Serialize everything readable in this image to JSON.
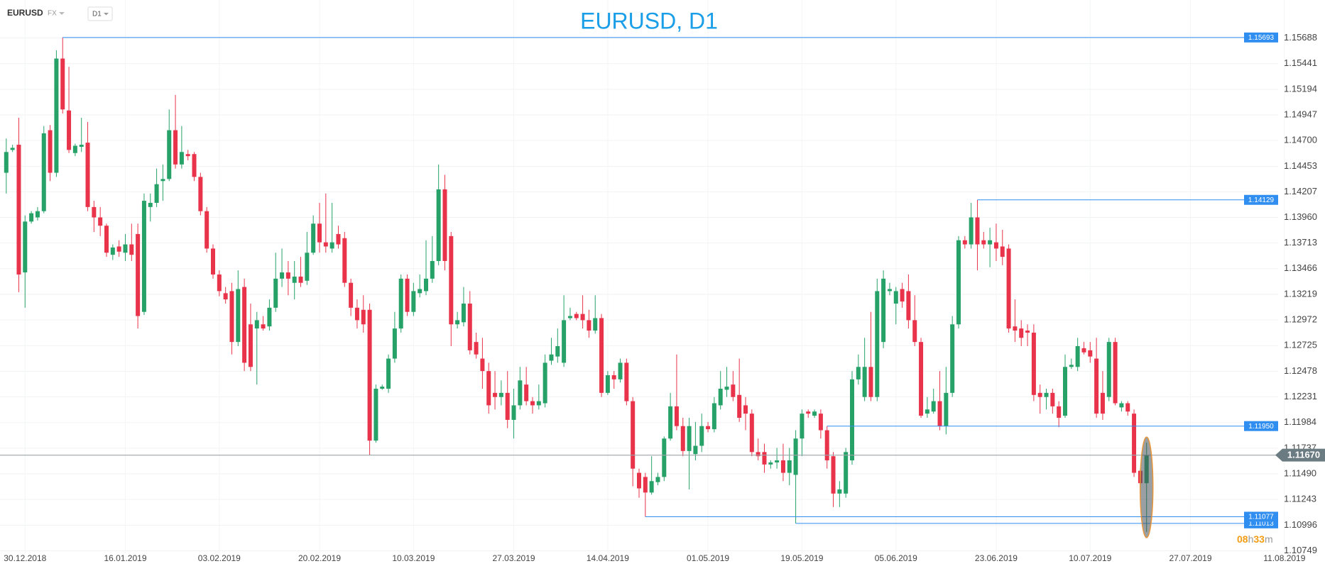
{
  "header": {
    "symbol": "EURUSD",
    "market": "FX",
    "timeframe": "D1"
  },
  "chart_data": {
    "type": "candlestick",
    "title": "EURUSD, D1",
    "up_color": "#26a269",
    "down_color": "#e8334a",
    "grid": true,
    "candles": [
      [
        1.1439,
        1.1472,
        1.1419,
        1.1459
      ],
      [
        1.1461,
        1.1466,
        1.1459,
        1.1463
      ],
      [
        1.1466,
        1.1492,
        1.1324,
        1.1341
      ],
      [
        1.1343,
        1.1398,
        1.1309,
        1.1392
      ],
      [
        1.1392,
        1.1402,
        1.139,
        1.14
      ],
      [
        1.1396,
        1.1406,
        1.1393,
        1.1402
      ],
      [
        1.1402,
        1.1484,
        1.14,
        1.1477
      ],
      [
        1.148,
        1.1485,
        1.1431,
        1.1439
      ],
      [
        1.1439,
        1.1557,
        1.1435,
        1.1549
      ],
      [
        1.1549,
        1.15693,
        1.1496,
        1.15
      ],
      [
        1.1499,
        1.1541,
        1.1458,
        1.1461
      ],
      [
        1.1458,
        1.1467,
        1.1455,
        1.1465
      ],
      [
        1.1464,
        1.1492,
        1.1459,
        1.1466
      ],
      [
        1.1468,
        1.1488,
        1.1402,
        1.1406
      ],
      [
        1.1406,
        1.1412,
        1.1382,
        1.1396
      ],
      [
        1.1396,
        1.1406,
        1.1378,
        1.1388
      ],
      [
        1.1388,
        1.139,
        1.1358,
        1.1362
      ],
      [
        1.136,
        1.137,
        1.1355,
        1.1367
      ],
      [
        1.1368,
        1.1374,
        1.1358,
        1.1363
      ],
      [
        1.1362,
        1.138,
        1.1354,
        1.137
      ],
      [
        1.137,
        1.139,
        1.1354,
        1.136
      ],
      [
        1.138,
        1.139,
        1.1289,
        1.1301
      ],
      [
        1.1305,
        1.1419,
        1.1302,
        1.1412
      ],
      [
        1.1406,
        1.1419,
        1.1392,
        1.141
      ],
      [
        1.141,
        1.1443,
        1.1406,
        1.1428
      ],
      [
        1.1431,
        1.1447,
        1.1412,
        1.1433
      ],
      [
        1.1433,
        1.15,
        1.1431,
        1.148
      ],
      [
        1.148,
        1.1514,
        1.1443,
        1.1447
      ],
      [
        1.1447,
        1.1484,
        1.1443,
        1.1459
      ],
      [
        1.1457,
        1.1461,
        1.1451,
        1.1455
      ],
      [
        1.1457,
        1.1459,
        1.1431,
        1.1435
      ],
      [
        1.1435,
        1.1439,
        1.1398,
        1.1402
      ],
      [
        1.1402,
        1.1406,
        1.1362,
        1.1366
      ],
      [
        1.1366,
        1.137,
        1.1337,
        1.1341
      ],
      [
        1.1341,
        1.1345,
        1.132,
        1.1325
      ],
      [
        1.1323,
        1.1329,
        1.1313,
        1.1317
      ],
      [
        1.1325,
        1.1333,
        1.1264,
        1.1276
      ],
      [
        1.1276,
        1.1345,
        1.1272,
        1.1327
      ],
      [
        1.1329,
        1.1337,
        1.1248,
        1.1256
      ],
      [
        1.1293,
        1.1313,
        1.1248,
        1.1252
      ],
      [
        1.1289,
        1.1305,
        1.1235,
        1.1297
      ],
      [
        1.1293,
        1.1301,
        1.1287,
        1.1289
      ],
      [
        1.1291,
        1.1317,
        1.1287,
        1.1309
      ],
      [
        1.1309,
        1.1362,
        1.1305,
        1.1337
      ],
      [
        1.1337,
        1.1366,
        1.1329,
        1.1343
      ],
      [
        1.1343,
        1.1354,
        1.1321,
        1.1337
      ],
      [
        1.1333,
        1.1354,
        1.1317,
        1.1339
      ],
      [
        1.1339,
        1.1358,
        1.1329,
        1.1333
      ],
      [
        1.1335,
        1.1382,
        1.1331,
        1.1362
      ],
      [
        1.1362,
        1.1398,
        1.136,
        1.139
      ],
      [
        1.139,
        1.141,
        1.1362,
        1.1372
      ],
      [
        1.1372,
        1.1419,
        1.1362,
        1.1368
      ],
      [
        1.1366,
        1.141,
        1.1362,
        1.1372
      ],
      [
        1.138,
        1.1388,
        1.1366,
        1.137
      ],
      [
        1.1376,
        1.1382,
        1.1329,
        1.1333
      ],
      [
        1.1333,
        1.1337,
        1.1301,
        1.1309
      ],
      [
        1.1309,
        1.1317,
        1.1289,
        1.1297
      ],
      [
        1.1307,
        1.1321,
        1.1285,
        1.1293
      ],
      [
        1.1307,
        1.1313,
        1.1167,
        1.1181
      ],
      [
        1.1181,
        1.1235,
        1.1179,
        1.1231
      ],
      [
        1.1231,
        1.1235,
        1.123,
        1.1233
      ],
      [
        1.1231,
        1.1264,
        1.1227,
        1.126
      ],
      [
        1.126,
        1.1305,
        1.1256,
        1.1289
      ],
      [
        1.1289,
        1.1341,
        1.1285,
        1.1337
      ],
      [
        1.1337,
        1.1341,
        1.1301,
        1.1305
      ],
      [
        1.1305,
        1.1333,
        1.1301,
        1.1325
      ],
      [
        1.1323,
        1.1341,
        1.1319,
        1.1327
      ],
      [
        1.1325,
        1.1374,
        1.1321,
        1.1337
      ],
      [
        1.1337,
        1.1378,
        1.1333,
        1.1354
      ],
      [
        1.1354,
        1.1447,
        1.135,
        1.1423
      ],
      [
        1.1423,
        1.1437,
        1.1345,
        1.1354
      ],
      [
        1.1378,
        1.1382,
        1.1272,
        1.1293
      ],
      [
        1.1293,
        1.1305,
        1.1289,
        1.1297
      ],
      [
        1.1295,
        1.1329,
        1.1291,
        1.1313
      ],
      [
        1.1313,
        1.1325,
        1.1264,
        1.1268
      ],
      [
        1.1276,
        1.1285,
        1.126,
        1.1264
      ],
      [
        1.126,
        1.128,
        1.1231,
        1.1248
      ],
      [
        1.1248,
        1.1256,
        1.1207,
        1.1215
      ],
      [
        1.1227,
        1.1248,
        1.1211,
        1.1223
      ],
      [
        1.1223,
        1.1239,
        1.1215,
        1.1227
      ],
      [
        1.1227,
        1.1248,
        1.1193,
        1.1201
      ],
      [
        1.1201,
        1.1231,
        1.1183,
        1.1215
      ],
      [
        1.1215,
        1.1252,
        1.1211,
        1.1239
      ],
      [
        1.1235,
        1.1252,
        1.1215,
        1.1219
      ],
      [
        1.1219,
        1.1223,
        1.1207,
        1.1215
      ],
      [
        1.1215,
        1.1235,
        1.1211,
        1.1219
      ],
      [
        1.1217,
        1.1264,
        1.1213,
        1.1256
      ],
      [
        1.1258,
        1.128,
        1.1254,
        1.1264
      ],
      [
        1.1262,
        1.1289,
        1.1256,
        1.1272
      ],
      [
        1.1256,
        1.1321,
        1.1252,
        1.1297
      ],
      [
        1.1299,
        1.1309,
        1.1297,
        1.1301
      ],
      [
        1.1303,
        1.1305,
        1.1297,
        1.1299
      ],
      [
        1.1303,
        1.1321,
        1.1289,
        1.1297
      ],
      [
        1.1297,
        1.1307,
        1.128,
        1.1287
      ],
      [
        1.1287,
        1.1321,
        1.1284,
        1.1299
      ],
      [
        1.1299,
        1.1303,
        1.1223,
        1.1227
      ],
      [
        1.1227,
        1.1248,
        1.1225,
        1.1244
      ],
      [
        1.1244,
        1.1248,
        1.1231,
        1.124
      ],
      [
        1.124,
        1.126,
        1.1237,
        1.1256
      ],
      [
        1.1256,
        1.126,
        1.1215,
        1.1219
      ],
      [
        1.1219,
        1.1223,
        1.1137,
        1.1154
      ],
      [
        1.115,
        1.1154,
        1.1126,
        1.1135
      ],
      [
        1.1146,
        1.115,
        1.11077,
        1.1131
      ],
      [
        1.1131,
        1.1166,
        1.1129,
        1.1142
      ],
      [
        1.1141,
        1.115,
        1.1138,
        1.1146
      ],
      [
        1.1146,
        1.1185,
        1.1142,
        1.1183
      ],
      [
        1.1183,
        1.1227,
        1.1181,
        1.1214
      ],
      [
        1.1214,
        1.1264,
        1.1191,
        1.1195
      ],
      [
        1.1195,
        1.1203,
        1.1166,
        1.1171
      ],
      [
        1.1171,
        1.1203,
        1.1134,
        1.1195
      ],
      [
        1.1168,
        1.1199,
        1.1162,
        1.1176
      ],
      [
        1.1176,
        1.1207,
        1.117,
        1.1195
      ],
      [
        1.1195,
        1.1199,
        1.1189,
        1.1192
      ],
      [
        1.1192,
        1.1223,
        1.1189,
        1.1217
      ],
      [
        1.1215,
        1.1248,
        1.1211,
        1.1231
      ],
      [
        1.123,
        1.1252,
        1.1223,
        1.1233
      ],
      [
        1.1235,
        1.1248,
        1.1219,
        1.1223
      ],
      [
        1.1225,
        1.126,
        1.1199,
        1.1203
      ],
      [
        1.1215,
        1.1223,
        1.1191,
        1.1207
      ],
      [
        1.1207,
        1.1211,
        1.1166,
        1.117
      ],
      [
        1.117,
        1.1183,
        1.1162,
        1.1166
      ],
      [
        1.117,
        1.1178,
        1.115,
        1.1158
      ],
      [
        1.1158,
        1.1162,
        1.1154,
        1.116
      ],
      [
        1.116,
        1.1174,
        1.1154,
        1.1162
      ],
      [
        1.1162,
        1.1178,
        1.1142,
        1.115
      ],
      [
        1.115,
        1.1174,
        1.1138,
        1.1162
      ],
      [
        1.1148,
        1.1191,
        1.11013,
        1.1183
      ],
      [
        1.1183,
        1.1211,
        1.1166,
        1.1207
      ],
      [
        1.1209,
        1.1211,
        1.1203,
        1.1207
      ],
      [
        1.1205,
        1.1211,
        1.1203,
        1.1209
      ],
      [
        1.1207,
        1.1211,
        1.1183,
        1.1191
      ],
      [
        1.1191,
        1.1195,
        1.1154,
        1.1162
      ],
      [
        1.1166,
        1.117,
        1.1117,
        1.113
      ],
      [
        1.113,
        1.1142,
        1.1117,
        1.1134
      ],
      [
        1.113,
        1.1174,
        1.1126,
        1.117
      ],
      [
        1.1162,
        1.1248,
        1.1158,
        1.124
      ],
      [
        1.124,
        1.1264,
        1.1235,
        1.1252
      ],
      [
        1.1223,
        1.128,
        1.1219,
        1.1252
      ],
      [
        1.1252,
        1.1305,
        1.1219,
        1.1223
      ],
      [
        1.1223,
        1.1337,
        1.1219,
        1.1325
      ],
      [
        1.1276,
        1.1345,
        1.127,
        1.1337
      ],
      [
        1.1325,
        1.1333,
        1.1321,
        1.1327
      ],
      [
        1.1313,
        1.1329,
        1.1293,
        1.1325
      ],
      [
        1.1327,
        1.1333,
        1.1309,
        1.1315
      ],
      [
        1.1325,
        1.1341,
        1.1289,
        1.1297
      ],
      [
        1.1297,
        1.1321,
        1.1272,
        1.1276
      ],
      [
        1.1276,
        1.128,
        1.1203,
        1.1205
      ],
      [
        1.1207,
        1.1223,
        1.1203,
        1.1211
      ],
      [
        1.1209,
        1.1231,
        1.1207,
        1.1219
      ],
      [
        1.1219,
        1.1248,
        1.1191,
        1.1195
      ],
      [
        1.1195,
        1.1252,
        1.1187,
        1.1227
      ],
      [
        1.1227,
        1.1301,
        1.1223,
        1.1293
      ],
      [
        1.1293,
        1.1378,
        1.1289,
        1.1374
      ],
      [
        1.1374,
        1.1378,
        1.1366,
        1.137
      ],
      [
        1.137,
        1.141,
        1.1366,
        1.1396
      ],
      [
        1.1396,
        1.14129,
        1.1345,
        1.137
      ],
      [
        1.1374,
        1.1382,
        1.1366,
        1.137
      ],
      [
        1.137,
        1.1386,
        1.1348,
        1.1374
      ],
      [
        1.1372,
        1.139,
        1.1354,
        1.1366
      ],
      [
        1.1368,
        1.1384,
        1.135,
        1.1358
      ],
      [
        1.1366,
        1.137,
        1.1285,
        1.1289
      ],
      [
        1.1291,
        1.1317,
        1.1276,
        1.1287
      ],
      [
        1.1289,
        1.1297,
        1.1272,
        1.128
      ],
      [
        1.1287,
        1.1293,
        1.1272,
        1.1285
      ],
      [
        1.1285,
        1.1293,
        1.1219,
        1.1225
      ],
      [
        1.1227,
        1.1235,
        1.1207,
        1.1223
      ],
      [
        1.1223,
        1.1231,
        1.1211,
        1.1227
      ],
      [
        1.1227,
        1.1231,
        1.1207,
        1.1214
      ],
      [
        1.1214,
        1.1219,
        1.1194,
        1.1203
      ],
      [
        1.1205,
        1.1264,
        1.1203,
        1.1252
      ],
      [
        1.1252,
        1.126,
        1.125,
        1.1254
      ],
      [
        1.1252,
        1.128,
        1.1248,
        1.1272
      ],
      [
        1.127,
        1.1276,
        1.1264,
        1.1266
      ],
      [
        1.1268,
        1.1276,
        1.1256,
        1.1262
      ],
      [
        1.126,
        1.128,
        1.1203,
        1.1207
      ],
      [
        1.1227,
        1.1248,
        1.1201,
        1.1207
      ],
      [
        1.1223,
        1.128,
        1.1219,
        1.1276
      ],
      [
        1.1276,
        1.128,
        1.1215,
        1.1217
      ],
      [
        1.1213,
        1.1219,
        1.1209,
        1.1217
      ],
      [
        1.1217,
        1.1219,
        1.1205,
        1.1209
      ],
      [
        1.1207,
        1.1211,
        1.1146,
        1.115
      ],
      [
        1.1152,
        1.1154,
        1.1137,
        1.114
      ],
      [
        1.114,
        1.1179,
        1.1093,
        1.1167
      ]
    ],
    "xlim": [
      -1,
      203
    ],
    "xticks": [
      {
        "value": 3,
        "label": "30.12.2018"
      },
      {
        "value": 19,
        "label": "16.01.2019"
      },
      {
        "value": 34,
        "label": "03.02.2019"
      },
      {
        "value": 50,
        "label": "20.02.2019"
      },
      {
        "value": 65,
        "label": "10.03.2019"
      },
      {
        "value": 81,
        "label": "27.03.2019"
      },
      {
        "value": 96,
        "label": "14.04.2019"
      },
      {
        "value": 112,
        "label": "01.05.2019"
      },
      {
        "value": 127,
        "label": "19.05.2019"
      },
      {
        "value": 142,
        "label": "05.06.2019"
      },
      {
        "value": 158,
        "label": "23.06.2019"
      },
      {
        "value": 173,
        "label": "10.07.2019"
      },
      {
        "value": 189,
        "label": "27.07.2019"
      },
      {
        "value": 204,
        "label": "11.08.2019"
      }
    ],
    "ylim": [
      1.10725,
      1.16054
    ],
    "yticks": [
      1.15688,
      1.15441,
      1.15194,
      1.14947,
      {
        "value": 1.147,
        "label": "1.14700"
      },
      1.14453,
      1.14207,
      {
        "value": 1.1396,
        "label": "1.13960"
      },
      1.13713,
      1.13466,
      1.13219,
      1.12972,
      1.12725,
      1.12478,
      1.12231,
      1.11984,
      1.11737,
      {
        "value": 1.1149,
        "label": "1.11490"
      },
      1.11243,
      1.10996,
      1.10749
    ],
    "levels": [
      {
        "value": 1.15693,
        "label": "1.15693"
      },
      {
        "value": 1.14129,
        "label": "1.14129"
      },
      {
        "value": 1.1195,
        "label": "1.11950"
      },
      {
        "value": 1.11013,
        "label": "1.11013"
      },
      {
        "value": 1.11077,
        "label": "1.11077"
      }
    ],
    "level_color": "#2f8ef0",
    "current": {
      "value": 1.1167,
      "label": "1.11670"
    },
    "countdown": {
      "hours": "08",
      "hours_unit": "h",
      "minutes": "33",
      "minutes_unit": "m"
    }
  }
}
